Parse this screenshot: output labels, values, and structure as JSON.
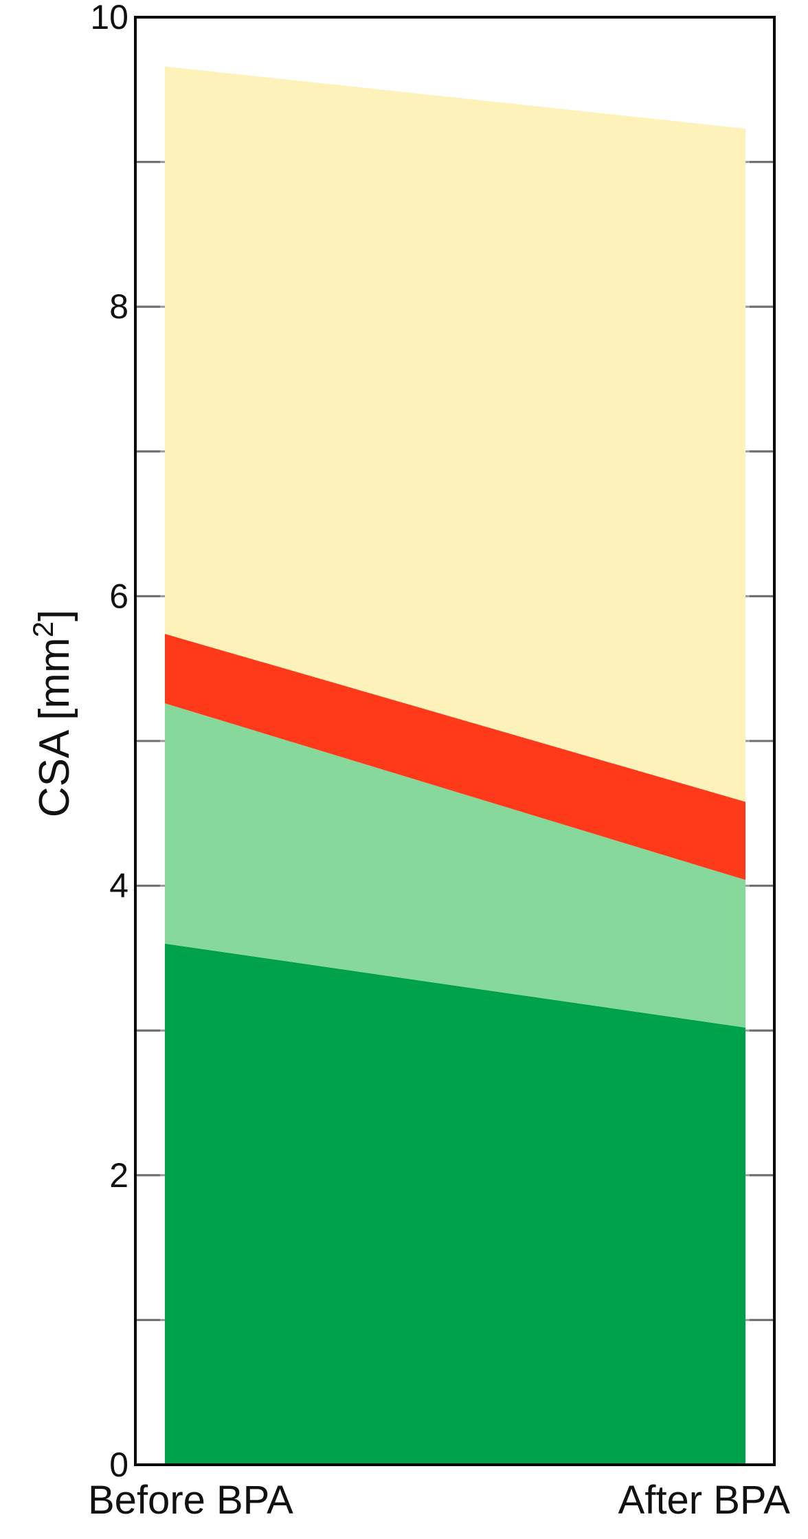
{
  "chart_data": {
    "type": "area",
    "stacked": true,
    "categories": [
      "Before BPA",
      "After BPA"
    ],
    "series": [
      {
        "values": [
          3.6,
          3.02
        ],
        "color": "#00A14B"
      },
      {
        "values": [
          1.66,
          1.02
        ],
        "color": "#86D99A"
      },
      {
        "values": [
          0.48,
          0.54
        ],
        "color": "#FF3A1A"
      },
      {
        "values": [
          3.92,
          4.65
        ],
        "color": "#FDF3BA"
      }
    ],
    "ylabel": "CSA [mm",
    "ylabel_superscript": "2",
    "ylabel_suffix": "]",
    "ylim": [
      0,
      10
    ],
    "yticks": [
      0,
      2,
      4,
      6,
      8,
      10
    ],
    "yticks_minor": [
      1,
      3,
      5,
      7,
      9
    ],
    "grid": "horizontal",
    "legend": "none"
  }
}
